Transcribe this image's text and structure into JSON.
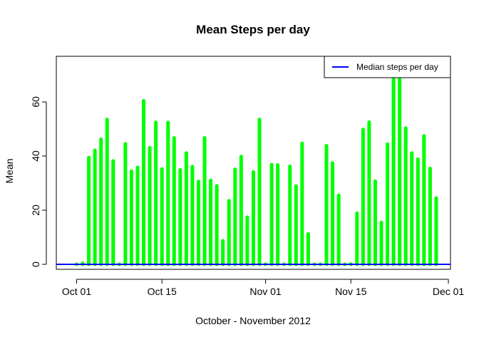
{
  "chart_data": {
    "type": "bar",
    "title": "Mean Steps per day",
    "xlabel": "October - November 2012",
    "ylabel": "Mean",
    "ylim": [
      0,
      70
    ],
    "yticks": [
      0,
      20,
      40,
      60
    ],
    "xticks": [
      {
        "date": "2012-10-01",
        "label": "Oct 01"
      },
      {
        "date": "2012-10-15",
        "label": "Oct 15"
      },
      {
        "date": "2012-11-01",
        "label": "Nov 01"
      },
      {
        "date": "2012-11-15",
        "label": "Nov 15"
      },
      {
        "date": "2012-12-01",
        "label": "Dec 01"
      }
    ],
    "grid": false,
    "legend": {
      "position": "top-right",
      "entries": [
        {
          "label": "Median steps per day",
          "color": "#0000ff",
          "style": "line"
        }
      ]
    },
    "bar_color": "#00ff00",
    "series": [
      {
        "name": "Mean steps per day",
        "x": [
          "2012-10-01",
          "2012-10-02",
          "2012-10-03",
          "2012-10-04",
          "2012-10-05",
          "2012-10-06",
          "2012-10-07",
          "2012-10-08",
          "2012-10-09",
          "2012-10-10",
          "2012-10-11",
          "2012-10-12",
          "2012-10-13",
          "2012-10-14",
          "2012-10-15",
          "2012-10-16",
          "2012-10-17",
          "2012-10-18",
          "2012-10-19",
          "2012-10-20",
          "2012-10-21",
          "2012-10-22",
          "2012-10-23",
          "2012-10-24",
          "2012-10-25",
          "2012-10-26",
          "2012-10-27",
          "2012-10-28",
          "2012-10-29",
          "2012-10-30",
          "2012-10-31",
          "2012-11-01",
          "2012-11-02",
          "2012-11-03",
          "2012-11-04",
          "2012-11-05",
          "2012-11-06",
          "2012-11-07",
          "2012-11-08",
          "2012-11-09",
          "2012-11-10",
          "2012-11-11",
          "2012-11-12",
          "2012-11-13",
          "2012-11-14",
          "2012-11-15",
          "2012-11-16",
          "2012-11-17",
          "2012-11-18",
          "2012-11-19",
          "2012-11-20",
          "2012-11-21",
          "2012-11-22",
          "2012-11-23",
          "2012-11-24",
          "2012-11-25",
          "2012-11-26",
          "2012-11-27",
          "2012-11-28",
          "2012-11-29"
        ],
        "values": [
          0,
          0.4,
          39.4,
          42.1,
          46.2,
          53.5,
          38.2,
          0,
          44.5,
          34.4,
          35.8,
          60.4,
          43.1,
          52.4,
          35.2,
          52.4,
          46.7,
          34.9,
          41.1,
          36.1,
          30.6,
          46.7,
          31.0,
          29.0,
          8.7,
          23.5,
          35.1,
          39.8,
          17.4,
          34.1,
          53.5,
          0,
          36.8,
          36.7,
          0,
          36.2,
          28.9,
          44.7,
          11.2,
          0,
          0,
          43.8,
          37.4,
          25.5,
          0,
          0.1,
          18.9,
          49.8,
          52.5,
          30.7,
          15.5,
          44.4,
          73.6,
          73.6,
          50.3,
          41.1,
          38.8,
          47.4,
          35.4,
          24.5
        ]
      }
    ],
    "median_line": {
      "name": "Median steps per day",
      "value": 0
    }
  }
}
